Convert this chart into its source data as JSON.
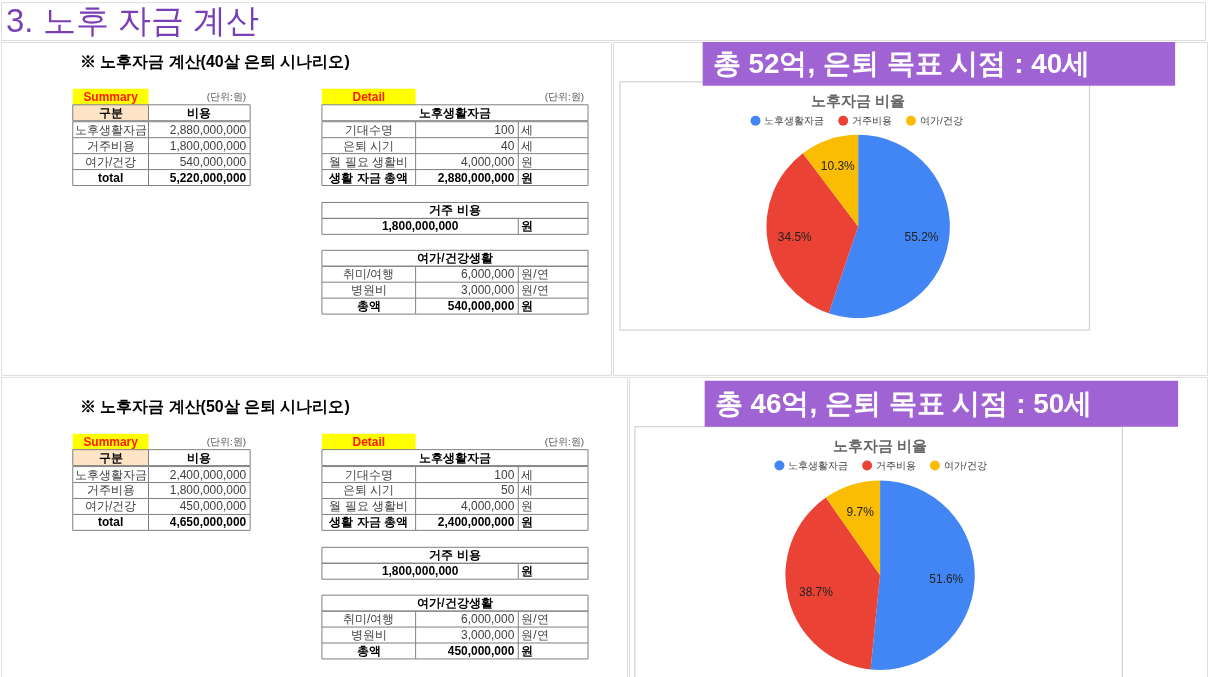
{
  "chart_data": [
    {
      "type": "other",
      "title": "3. 노후 자금 계산"
    },
    {
      "type": "other",
      "title": "※ 노후자금 계산(40살 은퇴 시나리오)",
      "annotations": [
        "Summary",
        "(단위:원)",
        "구분",
        "비용",
        "노후생활자금",
        "2,880,000,000",
        "거주비용",
        "1,800,000,000",
        "여가/건강",
        "540,000,000",
        "total",
        "5,220,000,000",
        "Detail",
        "(단위:원)",
        "노후생활자금",
        "기대수명",
        "100",
        "세",
        "은퇴 시기",
        "40",
        "세",
        "월 필요 생활비",
        "4,000,000",
        "원",
        "생활 자금 총액",
        "2,880,000,000",
        "원",
        "거주 비용",
        "1,800,000,000",
        "원",
        "여가/건강생활",
        "취미/여행",
        "6,000,000",
        "원/연",
        "병원비",
        "3,000,000",
        "원/연",
        "총액",
        "540,000,000",
        "원"
      ]
    },
    {
      "type": "pie",
      "title": "노후자금 비율",
      "annotations": [
        "총 52억, 은퇴 목표 시점 : 40세"
      ],
      "categories": [
        "노후생활자금",
        "거주비용",
        "여가/건강"
      ],
      "values": [
        55.2,
        34.5,
        10.3
      ],
      "colors": [
        "#4285f4",
        "#ea4335",
        "#fbbc04"
      ],
      "value_labels": [
        "55.2%",
        "34.5%",
        "10.3%"
      ],
      "legend": "top"
    },
    {
      "type": "other",
      "title": "※ 노후자금 계산(50살 은퇴 시나리오)",
      "annotations": [
        "Summary",
        "(단위:원)",
        "구분",
        "비용",
        "노후생활자금",
        "2,400,000,000",
        "거주비용",
        "1,800,000,000",
        "여가/건강",
        "450,000,000",
        "total",
        "4,650,000,000",
        "Detail",
        "(단위:원)",
        "노후생활자금",
        "기대수명",
        "100",
        "세",
        "은퇴 시기",
        "50",
        "세",
        "월 필요 생활비",
        "4,000,000",
        "원",
        "생활 자금 총액",
        "2,400,000,000",
        "원",
        "거주 비용",
        "1,800,000,000",
        "원",
        "여가/건강생활",
        "취미/여행",
        "6,000,000",
        "원/연",
        "병원비",
        "3,000,000",
        "원/연",
        "총액",
        "450,000,000",
        "원"
      ]
    },
    {
      "type": "pie",
      "title": "노후자금 비율",
      "annotations": [
        "총 46억, 은퇴 목표 시점 : 50세"
      ],
      "categories": [
        "노후생활자금",
        "거주비용",
        "여가/건강"
      ],
      "values": [
        51.6,
        38.7,
        9.7
      ],
      "colors": [
        "#4285f4",
        "#ea4335",
        "#fbbc04"
      ],
      "value_labels": [
        "51.6%",
        "38.7%",
        "9.7%"
      ],
      "legend": "top"
    }
  ]
}
